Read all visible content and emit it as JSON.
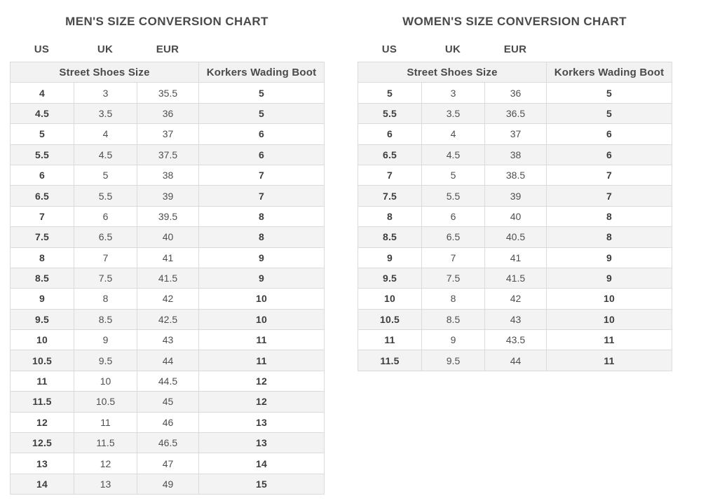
{
  "mens": {
    "title": "MEN'S SIZE CONVERSION CHART",
    "column_labels": {
      "us": "US",
      "uk": "UK",
      "eur": "EUR"
    },
    "group_headers": {
      "street": "Street Shoes Size",
      "korkers": "Korkers Wading Boot"
    },
    "rows": [
      [
        "4",
        "3",
        "35.5",
        "5"
      ],
      [
        "4.5",
        "3.5",
        "36",
        "5"
      ],
      [
        "5",
        "4",
        "37",
        "6"
      ],
      [
        "5.5",
        "4.5",
        "37.5",
        "6"
      ],
      [
        "6",
        "5",
        "38",
        "7"
      ],
      [
        "6.5",
        "5.5",
        "39",
        "7"
      ],
      [
        "7",
        "6",
        "39.5",
        "8"
      ],
      [
        "7.5",
        "6.5",
        "40",
        "8"
      ],
      [
        "8",
        "7",
        "41",
        "9"
      ],
      [
        "8.5",
        "7.5",
        "41.5",
        "9"
      ],
      [
        "9",
        "8",
        "42",
        "10"
      ],
      [
        "9.5",
        "8.5",
        "42.5",
        "10"
      ],
      [
        "10",
        "9",
        "43",
        "11"
      ],
      [
        "10.5",
        "9.5",
        "44",
        "11"
      ],
      [
        "11",
        "10",
        "44.5",
        "12"
      ],
      [
        "11.5",
        "10.5",
        "45",
        "12"
      ],
      [
        "12",
        "11",
        "46",
        "13"
      ],
      [
        "12.5",
        "11.5",
        "46.5",
        "13"
      ],
      [
        "13",
        "12",
        "47",
        "14"
      ],
      [
        "14",
        "13",
        "49",
        "15"
      ]
    ]
  },
  "womens": {
    "title": "WOMEN'S SIZE CONVERSION CHART",
    "column_labels": {
      "us": "US",
      "uk": "UK",
      "eur": "EUR"
    },
    "group_headers": {
      "street": "Street Shoes Size",
      "korkers": "Korkers Wading Boot"
    },
    "rows": [
      [
        "5",
        "3",
        "36",
        "5"
      ],
      [
        "5.5",
        "3.5",
        "36.5",
        "5"
      ],
      [
        "6",
        "4",
        "37",
        "6"
      ],
      [
        "6.5",
        "4.5",
        "38",
        "6"
      ],
      [
        "7",
        "5",
        "38.5",
        "7"
      ],
      [
        "7.5",
        "5.5",
        "39",
        "7"
      ],
      [
        "8",
        "6",
        "40",
        "8"
      ],
      [
        "8.5",
        "6.5",
        "40.5",
        "8"
      ],
      [
        "9",
        "7",
        "41",
        "9"
      ],
      [
        "9.5",
        "7.5",
        "41.5",
        "9"
      ],
      [
        "10",
        "8",
        "42",
        "10"
      ],
      [
        "10.5",
        "8.5",
        "43",
        "10"
      ],
      [
        "11",
        "9",
        "43.5",
        "11"
      ],
      [
        "11.5",
        "9.5",
        "44",
        "11"
      ]
    ]
  },
  "colors": {
    "title_text": "#4a4a4a",
    "bold_cell_text": "#3d3d3d",
    "regular_cell_text": "#4f4f4f",
    "header_row_bg": "#f2f2f2",
    "alt_row_bg": "#f3f3f3",
    "border": "#dbdbdb",
    "page_bg": "#ffffff"
  },
  "chart_data": [
    {
      "type": "table",
      "title": "MEN'S SIZE CONVERSION CHART",
      "column_groups": [
        "Street Shoes Size",
        "Korkers Wading Boot"
      ],
      "columns": [
        "US",
        "UK",
        "EUR",
        "Korkers Wading Boot"
      ],
      "rows": [
        [
          "4",
          "3",
          "35.5",
          "5"
        ],
        [
          "4.5",
          "3.5",
          "36",
          "5"
        ],
        [
          "5",
          "4",
          "37",
          "6"
        ],
        [
          "5.5",
          "4.5",
          "37.5",
          "6"
        ],
        [
          "6",
          "5",
          "38",
          "7"
        ],
        [
          "6.5",
          "5.5",
          "39",
          "7"
        ],
        [
          "7",
          "6",
          "39.5",
          "8"
        ],
        [
          "7.5",
          "6.5",
          "40",
          "8"
        ],
        [
          "8",
          "7",
          "41",
          "9"
        ],
        [
          "8.5",
          "7.5",
          "41.5",
          "9"
        ],
        [
          "9",
          "8",
          "42",
          "10"
        ],
        [
          "9.5",
          "8.5",
          "42.5",
          "10"
        ],
        [
          "10",
          "9",
          "43",
          "11"
        ],
        [
          "10.5",
          "9.5",
          "44",
          "11"
        ],
        [
          "11",
          "10",
          "44.5",
          "12"
        ],
        [
          "11.5",
          "10.5",
          "45",
          "12"
        ],
        [
          "12",
          "11",
          "46",
          "13"
        ],
        [
          "12.5",
          "11.5",
          "46.5",
          "13"
        ],
        [
          "13",
          "12",
          "47",
          "14"
        ],
        [
          "14",
          "13",
          "49",
          "15"
        ]
      ]
    },
    {
      "type": "table",
      "title": "WOMEN'S SIZE CONVERSION CHART",
      "column_groups": [
        "Street Shoes Size",
        "Korkers Wading Boot"
      ],
      "columns": [
        "US",
        "UK",
        "EUR",
        "Korkers Wading Boot"
      ],
      "rows": [
        [
          "5",
          "3",
          "36",
          "5"
        ],
        [
          "5.5",
          "3.5",
          "36.5",
          "5"
        ],
        [
          "6",
          "4",
          "37",
          "6"
        ],
        [
          "6.5",
          "4.5",
          "38",
          "6"
        ],
        [
          "7",
          "5",
          "38.5",
          "7"
        ],
        [
          "7.5",
          "5.5",
          "39",
          "7"
        ],
        [
          "8",
          "6",
          "40",
          "8"
        ],
        [
          "8.5",
          "6.5",
          "40.5",
          "8"
        ],
        [
          "9",
          "7",
          "41",
          "9"
        ],
        [
          "9.5",
          "7.5",
          "41.5",
          "9"
        ],
        [
          "10",
          "8",
          "42",
          "10"
        ],
        [
          "10.5",
          "8.5",
          "43",
          "10"
        ],
        [
          "11",
          "9",
          "43.5",
          "11"
        ],
        [
          "11.5",
          "9.5",
          "44",
          "11"
        ]
      ]
    }
  ]
}
